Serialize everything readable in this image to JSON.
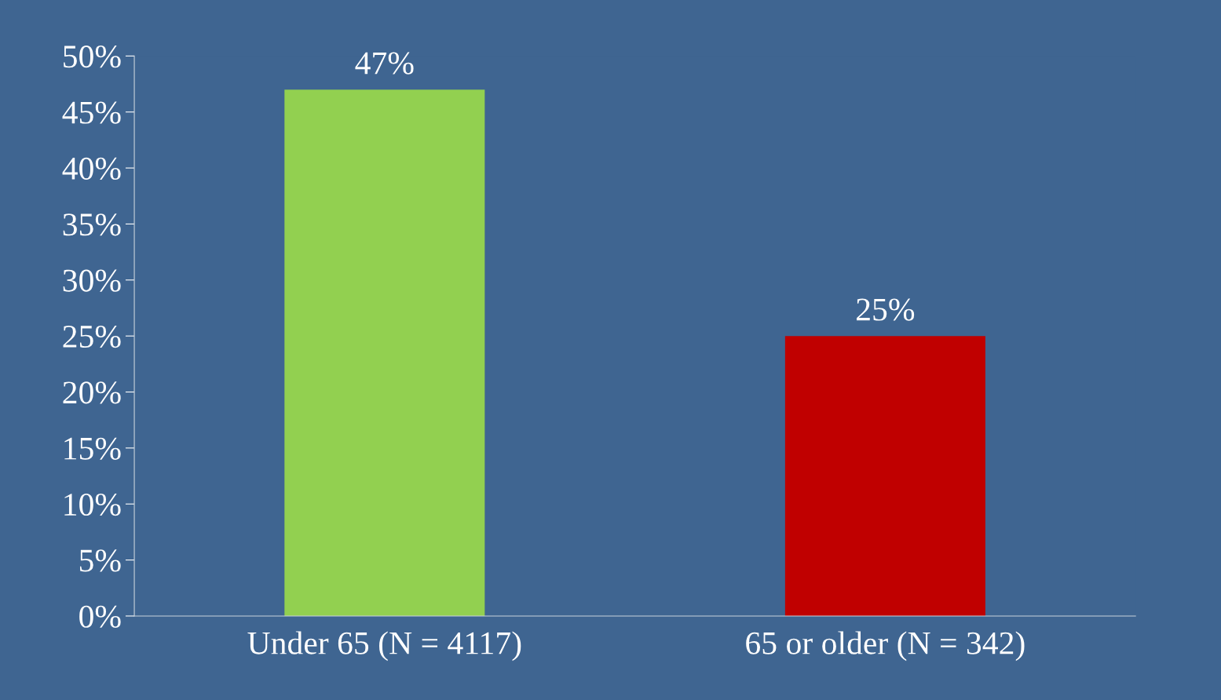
{
  "chart_data": {
    "type": "bar",
    "categories": [
      "Under 65 (N = 4117)",
      "65 or older (N = 342)"
    ],
    "values": [
      47,
      25
    ],
    "colors": [
      "#92d050",
      "#c00000"
    ],
    "value_labels": [
      "47%",
      "25%"
    ],
    "ylim": [
      0,
      50
    ],
    "yticks": [
      {
        "value": 0,
        "label": "0%"
      },
      {
        "value": 5,
        "label": "5%"
      },
      {
        "value": 10,
        "label": "10%"
      },
      {
        "value": 15,
        "label": "15%"
      },
      {
        "value": 20,
        "label": "20%"
      },
      {
        "value": 25,
        "label": "25%"
      },
      {
        "value": 30,
        "label": "30%"
      },
      {
        "value": 35,
        "label": "35%"
      },
      {
        "value": 40,
        "label": "40%"
      },
      {
        "value": 45,
        "label": "45%"
      },
      {
        "value": 50,
        "label": "50%"
      }
    ],
    "grid": false,
    "legend": false
  }
}
